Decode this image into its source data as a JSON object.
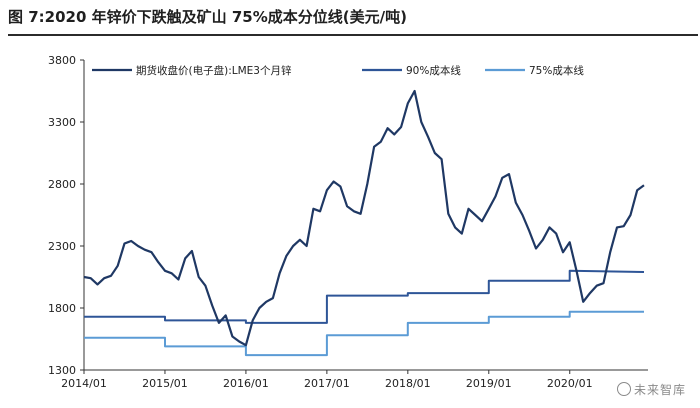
{
  "header": {
    "title": "图 7:2020 年锌价下跌触及矿山 75%成本分位线(美元/吨)"
  },
  "watermark": {
    "text": "未来智库",
    "icon": "wechat-icon"
  },
  "chart_data": {
    "type": "line",
    "title": "",
    "xlabel": "",
    "ylabel": "",
    "xlim": [
      "2014-01",
      "2020-12"
    ],
    "ylim": [
      1300,
      3800
    ],
    "y_ticks": [
      "1300",
      "1800",
      "2300",
      "2800",
      "3300",
      "3800"
    ],
    "x_ticks": [
      "2014/01",
      "2015/01",
      "2016/01",
      "2017/01",
      "2018/01",
      "2019/01",
      "2020/01"
    ],
    "grid": false,
    "legend_position": "top",
    "series": [
      {
        "name": "期货收盘价(电子盘):LME3个月锌",
        "color": "#1f3864",
        "style": "line",
        "points": [
          [
            "2014-01",
            2050
          ],
          [
            "2014-02",
            2040
          ],
          [
            "2014-03",
            1990
          ],
          [
            "2014-04",
            2040
          ],
          [
            "2014-05",
            2060
          ],
          [
            "2014-06",
            2140
          ],
          [
            "2014-07",
            2320
          ],
          [
            "2014-08",
            2340
          ],
          [
            "2014-09",
            2300
          ],
          [
            "2014-10",
            2270
          ],
          [
            "2014-11",
            2250
          ],
          [
            "2014-12",
            2170
          ],
          [
            "2015-01",
            2100
          ],
          [
            "2015-02",
            2080
          ],
          [
            "2015-03",
            2030
          ],
          [
            "2015-04",
            2200
          ],
          [
            "2015-05",
            2260
          ],
          [
            "2015-06",
            2050
          ],
          [
            "2015-07",
            1980
          ],
          [
            "2015-08",
            1820
          ],
          [
            "2015-09",
            1680
          ],
          [
            "2015-10",
            1740
          ],
          [
            "2015-11",
            1570
          ],
          [
            "2015-12",
            1530
          ],
          [
            "2016-01",
            1500
          ],
          [
            "2016-02",
            1700
          ],
          [
            "2016-03",
            1800
          ],
          [
            "2016-04",
            1850
          ],
          [
            "2016-05",
            1880
          ],
          [
            "2016-06",
            2080
          ],
          [
            "2016-07",
            2220
          ],
          [
            "2016-08",
            2300
          ],
          [
            "2016-09",
            2350
          ],
          [
            "2016-10",
            2300
          ],
          [
            "2016-11",
            2600
          ],
          [
            "2016-12",
            2580
          ],
          [
            "2017-01",
            2750
          ],
          [
            "2017-02",
            2820
          ],
          [
            "2017-03",
            2780
          ],
          [
            "2017-04",
            2620
          ],
          [
            "2017-05",
            2580
          ],
          [
            "2017-06",
            2560
          ],
          [
            "2017-07",
            2800
          ],
          [
            "2017-08",
            3100
          ],
          [
            "2017-09",
            3140
          ],
          [
            "2017-10",
            3250
          ],
          [
            "2017-11",
            3200
          ],
          [
            "2017-12",
            3260
          ],
          [
            "2018-01",
            3450
          ],
          [
            "2018-02",
            3550
          ],
          [
            "2018-03",
            3300
          ],
          [
            "2018-04",
            3180
          ],
          [
            "2018-05",
            3050
          ],
          [
            "2018-06",
            3000
          ],
          [
            "2018-07",
            2560
          ],
          [
            "2018-08",
            2450
          ],
          [
            "2018-09",
            2400
          ],
          [
            "2018-10",
            2600
          ],
          [
            "2018-11",
            2550
          ],
          [
            "2018-12",
            2500
          ],
          [
            "2019-01",
            2600
          ],
          [
            "2019-02",
            2700
          ],
          [
            "2019-03",
            2850
          ],
          [
            "2019-04",
            2880
          ],
          [
            "2019-05",
            2650
          ],
          [
            "2019-06",
            2550
          ],
          [
            "2019-07",
            2420
          ],
          [
            "2019-08",
            2280
          ],
          [
            "2019-09",
            2350
          ],
          [
            "2019-10",
            2450
          ],
          [
            "2019-11",
            2400
          ],
          [
            "2019-12",
            2250
          ],
          [
            "2020-01",
            2330
          ],
          [
            "2020-02",
            2100
          ],
          [
            "2020-03",
            1850
          ],
          [
            "2020-04",
            1920
          ],
          [
            "2020-05",
            1980
          ],
          [
            "2020-06",
            2000
          ],
          [
            "2020-07",
            2250
          ],
          [
            "2020-08",
            2450
          ],
          [
            "2020-09",
            2460
          ],
          [
            "2020-10",
            2550
          ],
          [
            "2020-11",
            2750
          ],
          [
            "2020-12",
            2790
          ]
        ]
      },
      {
        "name": "90%成本线",
        "color": "#2e5597",
        "style": "step",
        "points": [
          [
            "2014-01",
            1730
          ],
          [
            "2015-01",
            1730
          ],
          [
            "2015-01",
            1700
          ],
          [
            "2016-01",
            1700
          ],
          [
            "2016-01",
            1680
          ],
          [
            "2017-01",
            1680
          ],
          [
            "2017-01",
            1900
          ],
          [
            "2018-01",
            1900
          ],
          [
            "2018-01",
            1920
          ],
          [
            "2019-01",
            1920
          ],
          [
            "2019-01",
            2020
          ],
          [
            "2020-01",
            2020
          ],
          [
            "2020-01",
            2100
          ],
          [
            "2020-12",
            2090
          ]
        ]
      },
      {
        "name": "75%成本线",
        "color": "#5b9bd5",
        "style": "step",
        "points": [
          [
            "2014-01",
            1560
          ],
          [
            "2015-01",
            1560
          ],
          [
            "2015-01",
            1490
          ],
          [
            "2016-01",
            1490
          ],
          [
            "2016-01",
            1420
          ],
          [
            "2017-01",
            1420
          ],
          [
            "2017-01",
            1580
          ],
          [
            "2018-01",
            1580
          ],
          [
            "2018-01",
            1680
          ],
          [
            "2019-01",
            1680
          ],
          [
            "2019-01",
            1730
          ],
          [
            "2020-01",
            1730
          ],
          [
            "2020-01",
            1770
          ],
          [
            "2020-12",
            1770
          ]
        ]
      }
    ]
  }
}
